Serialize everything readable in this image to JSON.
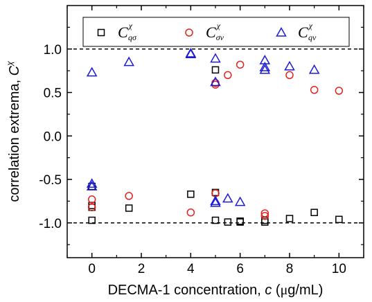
{
  "chart_data": {
    "type": "scatter",
    "xlabel_text": "DECMA-1 concentration, ",
    "xlabel_var": "c",
    "xlabel_unit_open": " (",
    "xlabel_unit_mu": "μ",
    "xlabel_unit_rest": "g/mL)",
    "ylabel_text": "correlation extrema, ",
    "ylabel_var": "C",
    "ylabel_sup": "χ",
    "xlim": [
      -1.0,
      11.0
    ],
    "ylim": [
      -1.4,
      1.5
    ],
    "x_ticks": [
      0,
      2,
      4,
      6,
      8,
      10
    ],
    "y_ticks": [
      -1.0,
      -0.5,
      0.0,
      0.5,
      1.0
    ],
    "x_tick_labels": [
      "0",
      "2",
      "4",
      "6",
      "8",
      "10"
    ],
    "y_tick_labels": [
      "-1.0",
      "-0.5",
      "0.0",
      "0.5",
      "1.0"
    ],
    "reference_lines": [
      1.0,
      -1.0
    ],
    "legend_position": "top",
    "series": [
      {
        "name": "C",
        "sup": "χ",
        "sub": "qσ",
        "marker": "square",
        "color": "#000000",
        "points": [
          [
            0,
            -0.58
          ],
          [
            0,
            -0.8
          ],
          [
            0,
            -0.82
          ],
          [
            0,
            -0.97
          ],
          [
            1.5,
            -0.83
          ],
          [
            4,
            -0.67
          ],
          [
            5,
            -0.65
          ],
          [
            5,
            -0.97
          ],
          [
            5,
            0.76
          ],
          [
            5.5,
            -0.99
          ],
          [
            6,
            -0.98
          ],
          [
            6,
            -0.99
          ],
          [
            7,
            -0.97
          ],
          [
            7,
            -0.99
          ],
          [
            8,
            -0.95
          ],
          [
            9,
            -0.88
          ],
          [
            10,
            -0.96
          ]
        ]
      },
      {
        "name": "C",
        "sup": "χ",
        "sub": "σv",
        "marker": "circle",
        "color": "#e8211d",
        "points": [
          [
            0,
            -0.73
          ],
          [
            0,
            -0.82
          ],
          [
            1.5,
            -0.69
          ],
          [
            4,
            -0.88
          ],
          [
            5,
            -0.66
          ],
          [
            5,
            0.59
          ],
          [
            5,
            0.61
          ],
          [
            5.5,
            0.7
          ],
          [
            6,
            0.82
          ],
          [
            7,
            -0.89
          ],
          [
            7,
            -0.92
          ],
          [
            8,
            0.7
          ],
          [
            9,
            0.53
          ],
          [
            10,
            0.52
          ]
        ]
      },
      {
        "name": "C",
        "sup": "χ",
        "sub": "qv",
        "marker": "triangle",
        "color": "#1b1bd6",
        "points": [
          [
            0,
            0.73
          ],
          [
            0,
            -0.55
          ],
          [
            0,
            -0.58
          ],
          [
            1.5,
            0.85
          ],
          [
            4,
            0.95
          ],
          [
            4,
            0.94
          ],
          [
            5,
            0.89
          ],
          [
            5,
            0.62
          ],
          [
            5,
            -0.75
          ],
          [
            5,
            -0.77
          ],
          [
            5.5,
            -0.72
          ],
          [
            6,
            -0.76
          ],
          [
            7,
            0.87
          ],
          [
            7,
            0.79
          ],
          [
            7,
            0.76
          ],
          [
            8,
            0.8
          ],
          [
            9,
            0.76
          ]
        ]
      }
    ]
  }
}
